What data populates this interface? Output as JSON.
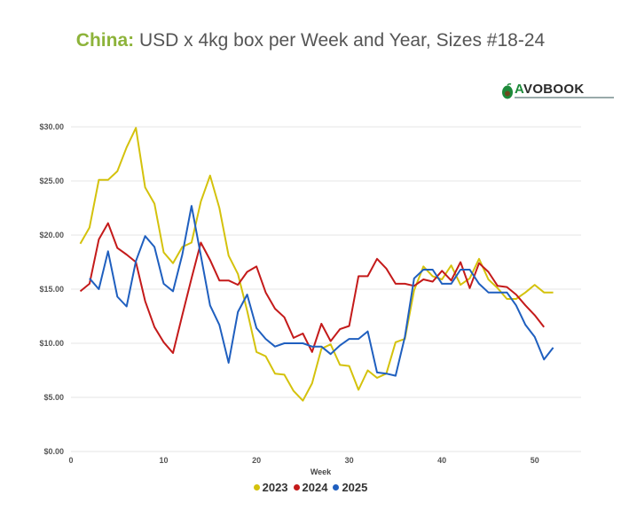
{
  "title": {
    "lead": "China:",
    "rest": " USD x 4kg box per Week and Year, Sizes #18-24"
  },
  "logo": {
    "brand_prefix": "A",
    "brand_rest": "VOBOOK",
    "colors": {
      "accent": "#1d8a3a",
      "dark": "#2b2b2b"
    }
  },
  "chart_data": {
    "type": "line",
    "title": "China: USD x 4kg box per Week and Year, Sizes #18-24",
    "xlabel": "Week",
    "ylabel": "",
    "xlim": [
      0,
      55
    ],
    "ylim": [
      0,
      30
    ],
    "x_ticks": [
      0,
      10,
      20,
      30,
      40,
      50
    ],
    "y_ticks": [
      0,
      5,
      10,
      15,
      20,
      25,
      30
    ],
    "y_tick_labels": [
      "$0.00",
      "$5.00",
      "$10.00",
      "$15.00",
      "$20.00",
      "$25.00",
      "$30.00"
    ],
    "grid": true,
    "legend_position": "bottom",
    "series": [
      {
        "name": "2023",
        "color": "#d4c20c",
        "x": [
          1,
          2,
          3,
          4,
          5,
          6,
          7,
          8,
          9,
          10,
          11,
          12,
          13,
          14,
          15,
          16,
          17,
          18,
          19,
          20,
          21,
          22,
          23,
          24,
          25,
          26,
          27,
          28,
          29,
          30,
          31,
          32,
          33,
          34,
          35,
          36,
          37,
          38,
          39,
          40,
          41,
          42,
          43,
          44,
          45,
          46,
          47,
          48,
          49,
          50,
          51,
          52
        ],
        "values": [
          19.2,
          20.7,
          25.1,
          25.1,
          25.9,
          28.1,
          29.9,
          24.4,
          22.9,
          18.4,
          17.4,
          18.9,
          19.3,
          23.1,
          25.5,
          22.5,
          18.1,
          16.4,
          13.0,
          9.2,
          8.8,
          7.2,
          7.1,
          5.6,
          4.7,
          6.3,
          9.5,
          9.9,
          8.0,
          7.9,
          5.7,
          7.5,
          6.8,
          7.2,
          10.1,
          10.4,
          14.9,
          17.1,
          16.2,
          15.9,
          17.2,
          15.4,
          16.0,
          17.8,
          15.9,
          15.1,
          14.1,
          14.1,
          14.7,
          15.4,
          14.7,
          14.7
        ]
      },
      {
        "name": "2024",
        "color": "#c41a1a",
        "x": [
          1,
          2,
          3,
          4,
          5,
          6,
          7,
          8,
          9,
          10,
          11,
          12,
          13,
          14,
          15,
          16,
          17,
          18,
          19,
          20,
          21,
          22,
          23,
          24,
          25,
          26,
          27,
          28,
          29,
          30,
          31,
          32,
          33,
          34,
          35,
          36,
          37,
          38,
          39,
          40,
          41,
          42,
          43,
          44,
          45,
          46,
          47,
          48,
          49,
          50,
          51,
          52
        ],
        "values": [
          14.8,
          15.5,
          19.6,
          21.1,
          18.8,
          18.2,
          17.5,
          13.9,
          11.5,
          10.1,
          9.1,
          12.6,
          16.0,
          19.3,
          17.7,
          15.8,
          15.8,
          15.4,
          16.6,
          17.1,
          14.7,
          13.2,
          12.4,
          10.5,
          10.9,
          9.2,
          11.8,
          10.2,
          11.3,
          11.6,
          16.2,
          16.2,
          17.8,
          16.9,
          15.5,
          15.5,
          15.3,
          15.9,
          15.7,
          16.7,
          15.8,
          17.5,
          15.1,
          17.4,
          16.6,
          15.3,
          15.2,
          14.5,
          13.5,
          12.6,
          11.5,
          null
        ]
      },
      {
        "name": "2025",
        "color": "#1f5fbf",
        "x": [
          1,
          2,
          3,
          4,
          5,
          6,
          7,
          8,
          9,
          10,
          11,
          12,
          13,
          14,
          15,
          16,
          17,
          18,
          19,
          20,
          21,
          22,
          23,
          24,
          25,
          26,
          27,
          28,
          29,
          30,
          31,
          32,
          33,
          34,
          35,
          36,
          37,
          38,
          39,
          40,
          41,
          42,
          43,
          44,
          45,
          46,
          47,
          48,
          49,
          50,
          51,
          52
        ],
        "values": [
          null,
          16.0,
          15.0,
          18.5,
          14.3,
          13.4,
          17.6,
          19.9,
          18.9,
          15.5,
          14.8,
          18.2,
          22.7,
          18.1,
          13.5,
          11.7,
          8.2,
          12.9,
          14.5,
          11.4,
          10.4,
          9.7,
          10.0,
          10.0,
          10.0,
          9.7,
          9.7,
          9.0,
          9.8,
          10.4,
          10.4,
          11.1,
          7.3,
          7.2,
          7.0,
          10.6,
          16.0,
          16.8,
          16.8,
          15.5,
          15.5,
          16.8,
          16.8,
          15.5,
          14.7,
          14.7,
          14.7,
          13.5,
          11.7,
          10.6,
          8.5,
          9.6
        ]
      }
    ]
  }
}
